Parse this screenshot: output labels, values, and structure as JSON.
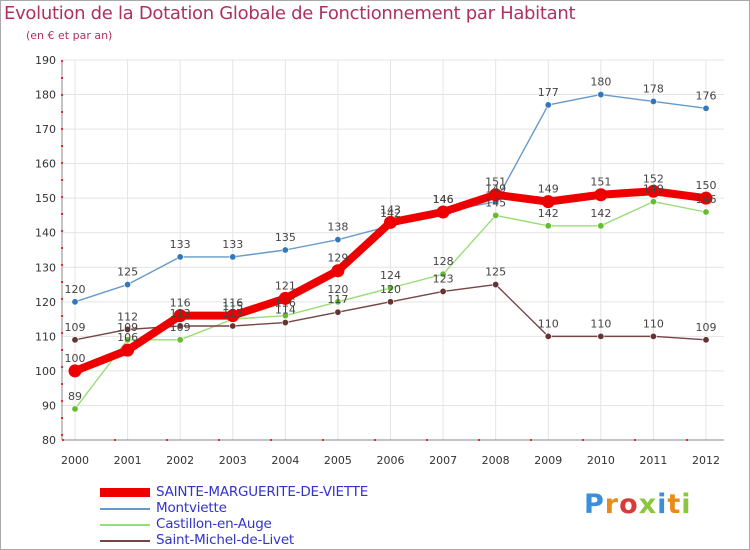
{
  "header": {
    "title": "Evolution de la Dotation Globale de Fonctionnement par Habitant",
    "subtitle": "(en € et par an)"
  },
  "brand": {
    "letters": [
      "P",
      "r",
      "o",
      "x",
      "i",
      "t",
      "i"
    ],
    "colors": [
      "#3a8fd8",
      "#e88b1a",
      "#d83a3a",
      "#8cc63f",
      "#3a8fd8",
      "#e88b1a",
      "#8cc63f"
    ]
  },
  "chart_data": {
    "type": "line",
    "title": "Evolution de la Dotation Globale de Fonctionnement par Habitant",
    "subtitle": "(en € et par an)",
    "xlabel": "",
    "ylabel": "",
    "ylim": [
      80,
      190
    ],
    "yticks": [
      80,
      90,
      100,
      110,
      120,
      130,
      140,
      150,
      160,
      170,
      180,
      190
    ],
    "grid": true,
    "legend_position": "bottom-left",
    "x": [
      "2000",
      "2001",
      "2002",
      "2003",
      "2004",
      "2005",
      "2006",
      "2007",
      "2008",
      "2009",
      "2010",
      "2011",
      "2012"
    ],
    "series": [
      {
        "name": "Montviette",
        "color": "#6699cc",
        "marker": "#3377bb",
        "values": [
          120,
          125,
          133,
          133,
          135,
          138,
          142,
          146,
          149,
          177,
          180,
          178,
          176
        ]
      },
      {
        "name": "Castillon-en-Auge",
        "color": "#99dd77",
        "marker": "#66bb33",
        "values": [
          89,
          109,
          109,
          115,
          116,
          120,
          124,
          128,
          145,
          142,
          142,
          149,
          146
        ]
      },
      {
        "name": "Saint-Michel-de-Livet",
        "color": "#774444",
        "marker": "#663333",
        "values": [
          109,
          112,
          113,
          113,
          114,
          117,
          120,
          123,
          125,
          110,
          110,
          110,
          109
        ]
      },
      {
        "name": "SAINTE-MARGUERITE-DE-VIETTE",
        "color": "#ee0000",
        "marker": "#ee0000",
        "values": [
          100,
          106,
          116,
          116,
          121,
          129,
          143,
          146,
          151,
          149,
          151,
          152,
          150
        ]
      }
    ],
    "legend_order": [
      "SAINTE-MARGUERITE-DE-VIETTE",
      "Montviette",
      "Castillon-en-Auge",
      "Saint-Michel-de-Livet"
    ]
  }
}
